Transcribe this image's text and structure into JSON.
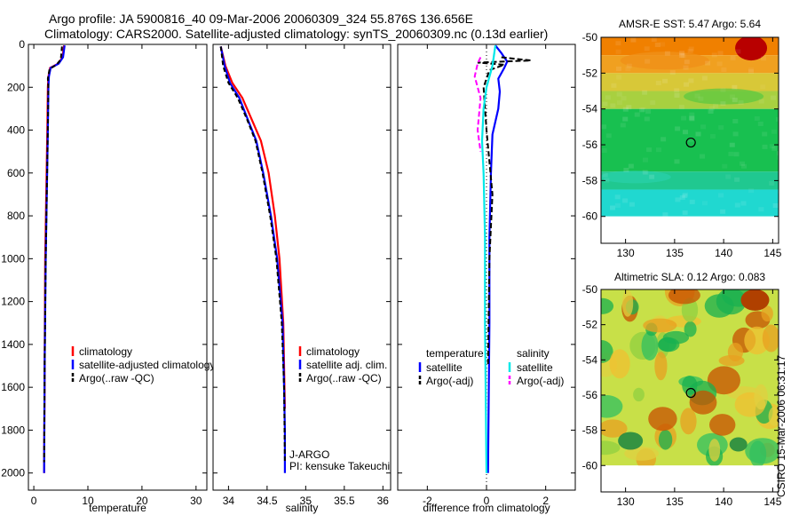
{
  "header": {
    "title_line1": "Argo profile: JA 5900816_40 09-Mar-2006 20060309_324 55.876S 136.656E",
    "title_line2": "Climatology: CARS2000. Satellite-adjusted climatology: synTS_20060309.nc (0.13d earlier)"
  },
  "footer": {
    "stamp": "CSIRO 15-Mar-2006 06:31:17"
  },
  "colors": {
    "climatology": "#ff0000",
    "satellite": "#0000ff",
    "argo": "#000000",
    "cyan": "#00e8e8",
    "magenta": "#ff00ff"
  },
  "chart_data": [
    {
      "id": "temperature",
      "type": "line",
      "xlabel": "temperature",
      "ylabel": "",
      "xlim": [
        -1,
        32
      ],
      "ylim": [
        2080,
        0
      ],
      "xticks": [
        0,
        10,
        20,
        30
      ],
      "xtick_labels": [
        "0",
        "10",
        "20",
        "30"
      ],
      "yticks": [
        0,
        200,
        400,
        600,
        800,
        1000,
        1200,
        1400,
        1600,
        1800,
        2000
      ],
      "ytick_labels": [
        "0",
        "200",
        "400",
        "600",
        "800",
        "1000",
        "1200",
        "1400",
        "1600",
        "1800",
        "2000"
      ],
      "legend": [
        "climatology",
        "satellite-adjusted climatology",
        "Argo(..raw -QC)"
      ],
      "series": [
        {
          "name": "climatology",
          "color": "#ff0000",
          "dash": "",
          "points": [
            [
              5.6,
              5
            ],
            [
              5.3,
              60
            ],
            [
              4.5,
              90
            ],
            [
              3.0,
              110
            ],
            [
              2.7,
              150
            ],
            [
              2.6,
              200
            ],
            [
              2.5,
              400
            ],
            [
              2.3,
              700
            ],
            [
              2.1,
              1000
            ],
            [
              2.0,
              1500
            ],
            [
              1.9,
              2000
            ]
          ]
        },
        {
          "name": "satellite-adjusted climatology",
          "color": "#0000ff",
          "dash": "",
          "points": [
            [
              5.7,
              5
            ],
            [
              5.4,
              60
            ],
            [
              4.6,
              90
            ],
            [
              3.1,
              110
            ],
            [
              2.8,
              150
            ],
            [
              2.7,
              200
            ],
            [
              2.6,
              400
            ],
            [
              2.4,
              700
            ],
            [
              2.2,
              1000
            ],
            [
              2.0,
              1500
            ],
            [
              1.9,
              2000
            ]
          ]
        },
        {
          "name": "Argo(..raw -QC)",
          "color": "#000000",
          "dash": "5,3",
          "points": [
            [
              5.2,
              10
            ],
            [
              5.0,
              70
            ],
            [
              4.2,
              95
            ],
            [
              2.9,
              115
            ],
            [
              2.6,
              160
            ],
            [
              2.7,
              200
            ],
            [
              2.6,
              400
            ],
            [
              2.4,
              700
            ],
            [
              2.2,
              1000
            ],
            [
              2.0,
              1500
            ],
            [
              1.9,
              1950
            ]
          ]
        }
      ]
    },
    {
      "id": "salinity",
      "type": "line",
      "xlabel": "salinity",
      "ylabel": "",
      "xlim": [
        33.8,
        36.1
      ],
      "ylim": [
        2080,
        0
      ],
      "xticks": [
        34,
        34.5,
        35,
        35.5,
        36
      ],
      "xtick_labels": [
        "34",
        "34.5",
        "35",
        "35.5",
        "36"
      ],
      "yticks": [
        0,
        200,
        400,
        600,
        800,
        1000,
        1200,
        1400,
        1600,
        1800,
        2000
      ],
      "ytick_labels": [],
      "legend": [
        "climatology",
        "satellite adj. clim.",
        "Argo(..raw -QC)"
      ],
      "annotations": [
        "J-ARGO",
        "PI: kensuke Takeuchi"
      ],
      "series": [
        {
          "name": "climatology",
          "color": "#ff0000",
          "dash": "",
          "points": [
            [
              33.9,
              10
            ],
            [
              33.96,
              100
            ],
            [
              34.05,
              180
            ],
            [
              34.18,
              250
            ],
            [
              34.3,
              350
            ],
            [
              34.42,
              450
            ],
            [
              34.52,
              600
            ],
            [
              34.6,
              800
            ],
            [
              34.66,
              1000
            ],
            [
              34.71,
              1300
            ],
            [
              34.73,
              1700
            ]
          ]
        },
        {
          "name": "satellite adj. clim.",
          "color": "#0000ff",
          "dash": "",
          "points": [
            [
              33.9,
              10
            ],
            [
              33.95,
              100
            ],
            [
              34.02,
              180
            ],
            [
              34.14,
              250
            ],
            [
              34.25,
              350
            ],
            [
              34.36,
              450
            ],
            [
              34.45,
              600
            ],
            [
              34.55,
              800
            ],
            [
              34.63,
              1000
            ],
            [
              34.7,
              1300
            ],
            [
              34.72,
              1600
            ],
            [
              34.73,
              1800
            ],
            [
              34.73,
              2000
            ]
          ]
        },
        {
          "name": "Argo(..raw -QC)",
          "color": "#000000",
          "dash": "5,3",
          "points": [
            [
              33.9,
              10
            ],
            [
              33.93,
              100
            ],
            [
              34.0,
              180
            ],
            [
              34.12,
              250
            ],
            [
              34.24,
              350
            ],
            [
              34.35,
              450
            ],
            [
              34.44,
              600
            ],
            [
              34.54,
              800
            ],
            [
              34.62,
              1000
            ],
            [
              34.69,
              1300
            ],
            [
              34.72,
              1600
            ],
            [
              34.73,
              1950
            ]
          ]
        }
      ]
    },
    {
      "id": "difference",
      "type": "line",
      "xlabel": "difference from climatology",
      "ylabel": "",
      "xlim": [
        -3,
        3
      ],
      "ylim": [
        2080,
        0
      ],
      "xticks": [
        -2,
        0,
        2
      ],
      "xtick_labels": [
        "-2",
        "0",
        "2"
      ],
      "yticks": [
        0,
        200,
        400,
        600,
        800,
        1000,
        1200,
        1400,
        1600,
        1800,
        2000
      ],
      "ytick_labels": [],
      "legend_left_title": "temperature",
      "legend_right_title": "salinity",
      "legend_left": [
        "satellite",
        "Argo(-adj)"
      ],
      "legend_right": [
        "satellite",
        "Argo(-adj)"
      ],
      "series": [
        {
          "name": "temperature satellite",
          "color": "#0000ff",
          "dash": "",
          "points": [
            [
              0.3,
              5
            ],
            [
              0.5,
              40
            ],
            [
              0.7,
              80
            ],
            [
              0.6,
              110
            ],
            [
              0.4,
              160
            ],
            [
              0.45,
              220
            ],
            [
              0.4,
              300
            ],
            [
              0.2,
              420
            ],
            [
              0.15,
              600
            ],
            [
              0.1,
              900
            ],
            [
              0.1,
              1300
            ],
            [
              0.05,
              2000
            ]
          ]
        },
        {
          "name": "temperature Argo(-adj)",
          "color": "#000000",
          "dash": "6,3",
          "points": [
            [
              0.5,
              60
            ],
            [
              1.5,
              75
            ],
            [
              -0.3,
              85
            ],
            [
              0.6,
              95
            ],
            [
              0.1,
              120
            ],
            [
              -0.1,
              200
            ],
            [
              0.0,
              400
            ],
            [
              0.2,
              700
            ],
            [
              0.1,
              1000
            ],
            [
              0.05,
              1500
            ]
          ]
        },
        {
          "name": "salinity satellite",
          "color": "#00e8e8",
          "dash": "",
          "points": [
            [
              0.3,
              5
            ],
            [
              0.2,
              100
            ],
            [
              0.0,
              200
            ],
            [
              -0.1,
              300
            ],
            [
              -0.15,
              450
            ],
            [
              -0.1,
              600
            ],
            [
              -0.05,
              900
            ],
            [
              -0.05,
              1300
            ],
            [
              0.0,
              2000
            ]
          ]
        },
        {
          "name": "salinity Argo(-adj)",
          "color": "#ff00ff",
          "dash": "6,3",
          "points": [
            [
              -0.2,
              60
            ],
            [
              -0.3,
              90
            ],
            [
              -0.4,
              150
            ],
            [
              -0.2,
              250
            ],
            [
              -0.3,
              400
            ],
            [
              -0.2,
              500
            ]
          ]
        }
      ]
    },
    {
      "id": "sst-map",
      "type": "heatmap",
      "title": "AMSR-E SST: 5.47 Argo: 5.64",
      "xlim": [
        127.5,
        145.6
      ],
      "ylim": [
        -61.5,
        -50
      ],
      "xticks": [
        130,
        135,
        140,
        145
      ],
      "xtick_labels": [
        "130",
        "135",
        "140",
        "145"
      ],
      "yticks": [
        -50,
        -52,
        -54,
        -56,
        -58,
        -60
      ],
      "ytick_labels": [
        "-50",
        "-52",
        "-54",
        "-56",
        "-58",
        "-60"
      ],
      "argo_position": [
        136.656,
        -55.876
      ],
      "bands": [
        {
          "lat_top": -50.0,
          "lat_bottom": -51.0,
          "color": "#f08000"
        },
        {
          "lat_top": -51.0,
          "lat_bottom": -52.0,
          "color": "#f0a020"
        },
        {
          "lat_top": -52.0,
          "lat_bottom": -53.0,
          "color": "#d8c838"
        },
        {
          "lat_top": -53.0,
          "lat_bottom": -54.0,
          "color": "#a8d040"
        },
        {
          "lat_top": -54.0,
          "lat_bottom": -57.5,
          "color": "#18c050"
        },
        {
          "lat_top": -57.5,
          "lat_bottom": -58.5,
          "color": "#20c890"
        },
        {
          "lat_top": -58.5,
          "lat_bottom": -60.0,
          "color": "#20d8d0"
        }
      ]
    },
    {
      "id": "sla-map",
      "type": "heatmap",
      "title": "Altimetric SLA: 0.12 Argo: 0.083",
      "xlim": [
        127.5,
        145.6
      ],
      "ylim": [
        -61.5,
        -50
      ],
      "xticks": [
        130,
        135,
        140,
        145
      ],
      "xtick_labels": [
        "130",
        "135",
        "140",
        "145"
      ],
      "yticks": [
        -50,
        -52,
        -54,
        -56,
        -58,
        -60
      ],
      "ytick_labels": [
        "-50",
        "-52",
        "-54",
        "-56",
        "-58",
        "-60"
      ],
      "argo_position": [
        136.656,
        -55.876
      ],
      "base_color": "#c8e048"
    }
  ]
}
